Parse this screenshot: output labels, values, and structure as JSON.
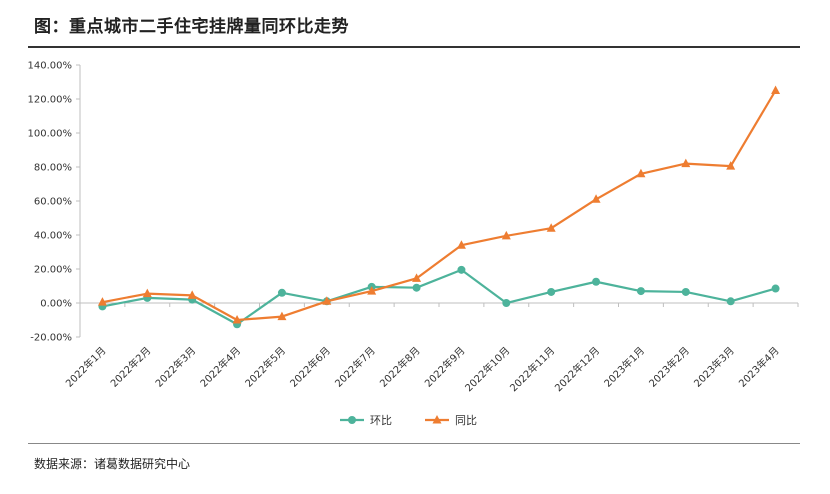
{
  "title": "图：重点城市二手住宅挂牌量同环比走势",
  "source": "数据来源：诸葛数据研究中心",
  "chart_data": {
    "type": "line",
    "categories": [
      "2022年1月",
      "2022年2月",
      "2022年3月",
      "2022年4月",
      "2022年5月",
      "2022年6月",
      "2022年7月",
      "2022年8月",
      "2022年9月",
      "2022年10月",
      "2022年11月",
      "2022年12月",
      "2023年1月",
      "2023年2月",
      "2023年3月",
      "2023年4月"
    ],
    "series": [
      {
        "name": "环比",
        "color": "#4db39b",
        "marker": "circle",
        "values": [
          -2.0,
          3.0,
          2.0,
          -12.5,
          6.0,
          1.0,
          9.5,
          9.0,
          19.5,
          0.0,
          6.5,
          12.5,
          7.0,
          6.5,
          1.0,
          8.5
        ]
      },
      {
        "name": "同比",
        "color": "#ee7d31",
        "marker": "triangle",
        "values": [
          0.5,
          5.5,
          4.5,
          -10.0,
          -8.0,
          1.0,
          7.0,
          14.5,
          34.0,
          39.5,
          44.0,
          61.0,
          76.0,
          82.0,
          80.5,
          125.0
        ]
      }
    ],
    "ylim": [
      -20,
      140
    ],
    "yticks": [
      -20,
      0,
      20,
      40,
      60,
      80,
      100,
      120,
      140
    ],
    "ytick_labels": [
      "-20.00%",
      "0.00%",
      "20.00%",
      "40.00%",
      "60.00%",
      "80.00%",
      "100.00%",
      "120.00%",
      "140.00%"
    ],
    "legend_position": "bottom",
    "grid": false
  }
}
